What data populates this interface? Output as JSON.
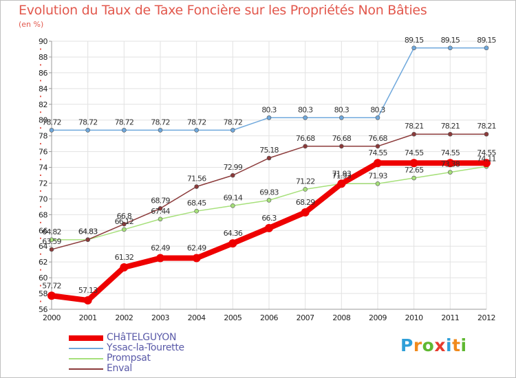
{
  "title": "Evolution du Taux de Taxe Foncière sur les Propriétés Non Bâties",
  "unit": "(en %)",
  "logo": {
    "letters": [
      "P",
      "r",
      "o",
      "x",
      "i",
      "t",
      "i"
    ],
    "colors": [
      "#2f9fd8",
      "#f08a1c",
      "#5fb831",
      "#e63b2e",
      "#2f9fd8",
      "#f08a1c",
      "#5fb831"
    ]
  },
  "chart_data": {
    "type": "line",
    "x": [
      "2000",
      "2001",
      "2002",
      "2003",
      "2004",
      "2005",
      "2006",
      "2007",
      "2008",
      "2009",
      "2010",
      "2011",
      "2012"
    ],
    "ylim": [
      56,
      90
    ],
    "yticks": [
      "56",
      "58",
      "60",
      "62",
      "64",
      "66",
      "68",
      "70",
      "72",
      "74",
      "76",
      "78",
      "80",
      "82",
      "84",
      "86",
      "88",
      "90"
    ],
    "grid": true,
    "legend_position": "bottom-left",
    "series": [
      {
        "name": "CHâTELGUYON",
        "color": "#ee0000",
        "values": [
          57.72,
          57.13,
          61.32,
          62.49,
          62.49,
          64.36,
          66.3,
          68.29,
          71.93,
          74.55,
          74.55,
          74.55,
          74.55
        ],
        "labels": [
          "57.72",
          "57.13",
          "61.32",
          "62.49",
          "62.49",
          "64.36",
          "66.3",
          "68.29",
          "71.93",
          "74.55",
          "74.55",
          "74.55",
          "74.55"
        ]
      },
      {
        "name": "Yssac-la-Tourette",
        "color": "#6fa8dc",
        "values": [
          78.72,
          78.72,
          78.72,
          78.72,
          78.72,
          78.72,
          80.3,
          80.3,
          80.3,
          80.3,
          89.15,
          89.15,
          89.15
        ],
        "labels": [
          "78.72",
          "78.72",
          "78.72",
          "78.72",
          "78.72",
          "78.72",
          "80.3",
          "80.3",
          "80.3",
          "80.3",
          "89.15",
          "89.15",
          "89.15"
        ]
      },
      {
        "name": "Prompsat",
        "color": "#a6e07a",
        "values": [
          64.82,
          64.83,
          66.12,
          67.44,
          68.45,
          69.14,
          69.83,
          71.22,
          71.93,
          71.93,
          72.65,
          73.38,
          74.11
        ],
        "labels": [
          "64.82",
          "64.83",
          "66.12",
          "67.44",
          "68.45",
          "69.14",
          "69.83",
          "71.22",
          "71.93",
          "71.93",
          "72.65",
          "73.38",
          "74.11"
        ]
      },
      {
        "name": "Enval",
        "color": "#8b3a3a",
        "values": [
          63.59,
          64.83,
          66.8,
          68.79,
          71.56,
          72.99,
          75.18,
          76.68,
          76.68,
          76.68,
          78.21,
          78.21,
          78.21
        ],
        "labels": [
          "63.59",
          "64.83",
          "66.8",
          "68.79",
          "71.56",
          "72.99",
          "75.18",
          "76.68",
          "76.68",
          "76.68",
          "78.21",
          "78.21",
          "78.21"
        ]
      }
    ]
  }
}
